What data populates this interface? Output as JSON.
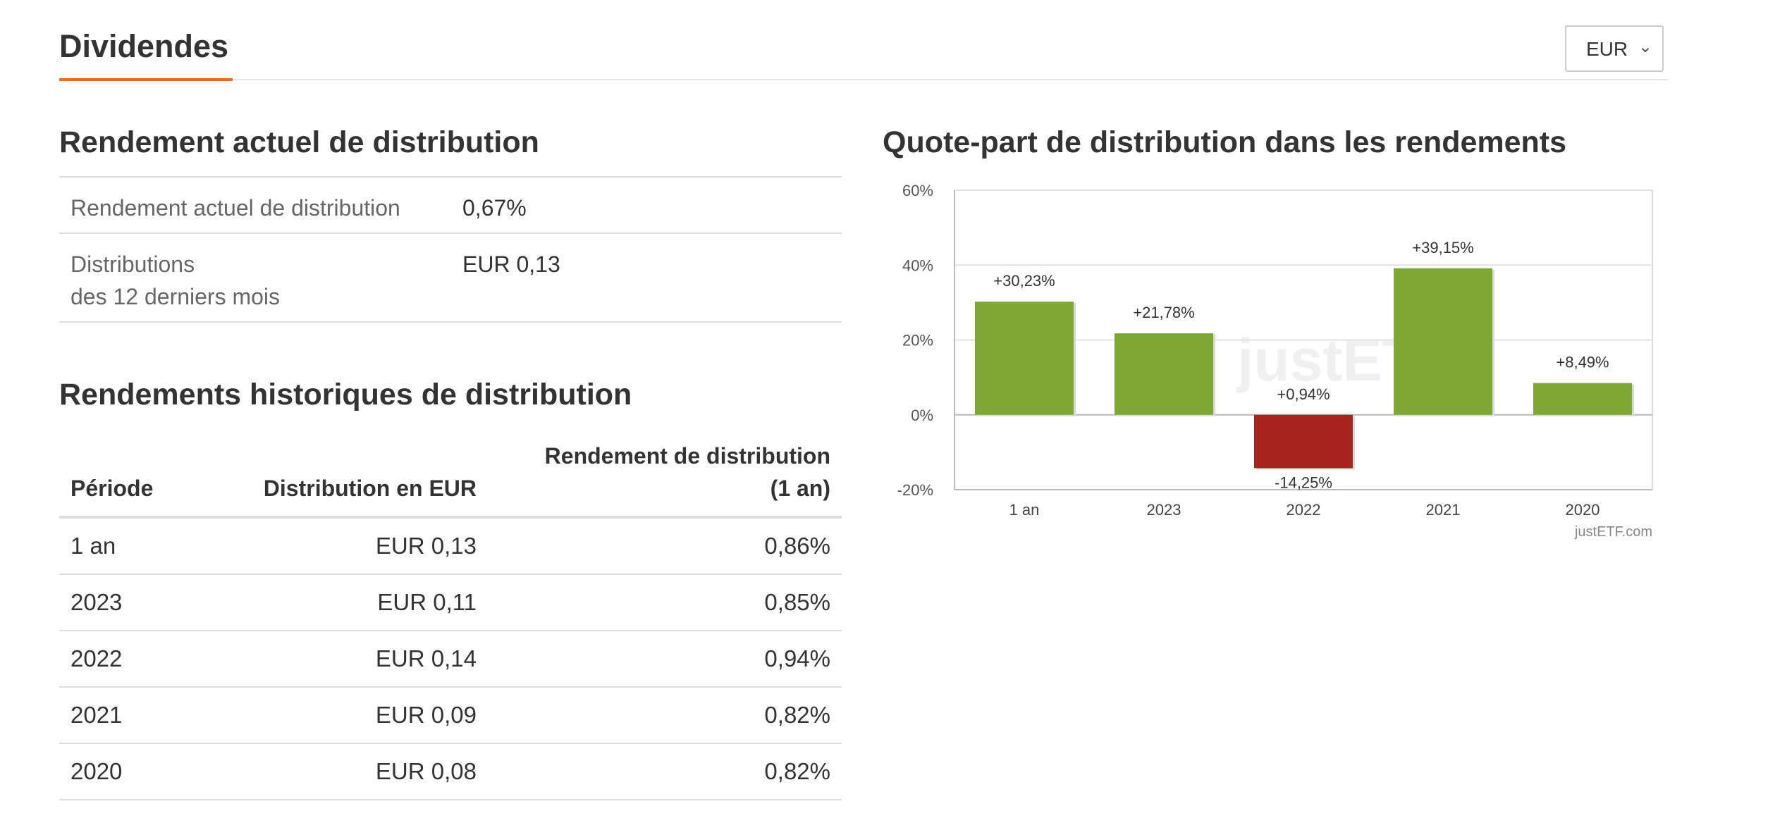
{
  "header": {
    "title": "Dividendes",
    "currency_selected": "EUR",
    "chevron_glyph": "⌄"
  },
  "current_yield": {
    "title": "Rendement actuel de distribution",
    "rows": [
      {
        "label_lines": [
          "Rendement actuel de distribution"
        ],
        "value": "0,67%"
      },
      {
        "label_lines": [
          "Distributions",
          "des 12 derniers mois"
        ],
        "value": "EUR 0,13"
      }
    ]
  },
  "historical": {
    "title": "Rendements historiques de distribution",
    "columns": {
      "period": "Période",
      "distribution": "Distribution en EUR",
      "yield_lines": [
        "Rendement de distribution",
        "(1 an)"
      ]
    },
    "rows": [
      {
        "period": "1 an",
        "distribution": "EUR 0,13",
        "yield": "0,86%"
      },
      {
        "period": "2023",
        "distribution": "EUR 0,11",
        "yield": "0,85%"
      },
      {
        "period": "2022",
        "distribution": "EUR 0,14",
        "yield": "0,94%"
      },
      {
        "period": "2021",
        "distribution": "EUR 0,09",
        "yield": "0,82%"
      },
      {
        "period": "2020",
        "distribution": "EUR 0,08",
        "yield": "0,82%"
      }
    ]
  },
  "chart_section": {
    "title": "Quote-part de distribution dans les rendements"
  },
  "chart_data": {
    "type": "bar",
    "categories": [
      "1 an",
      "2023",
      "2022",
      "2021",
      "2020"
    ],
    "values": [
      30.23,
      21.78,
      -14.25,
      39.15,
      8.49
    ],
    "data_labels": [
      "+30,23%",
      "+21,78%",
      "-14,25%",
      "+39,15%",
      "+8,49%"
    ],
    "extra_labels": [
      {
        "category": "2022",
        "text": "+0,94%"
      }
    ],
    "ylim": [
      -20,
      60
    ],
    "yticks": [
      60,
      40,
      20,
      0,
      -20
    ],
    "ytick_labels": [
      "60%",
      "40%",
      "20%",
      "0%",
      "-20%"
    ],
    "grid": true,
    "watermark": "justETF",
    "credit": "justETF.com",
    "colors": {
      "positive": "#7ea833",
      "negative": "#a8251e",
      "grid": "#e2e2e2",
      "axis": "#bbbbbb"
    }
  }
}
